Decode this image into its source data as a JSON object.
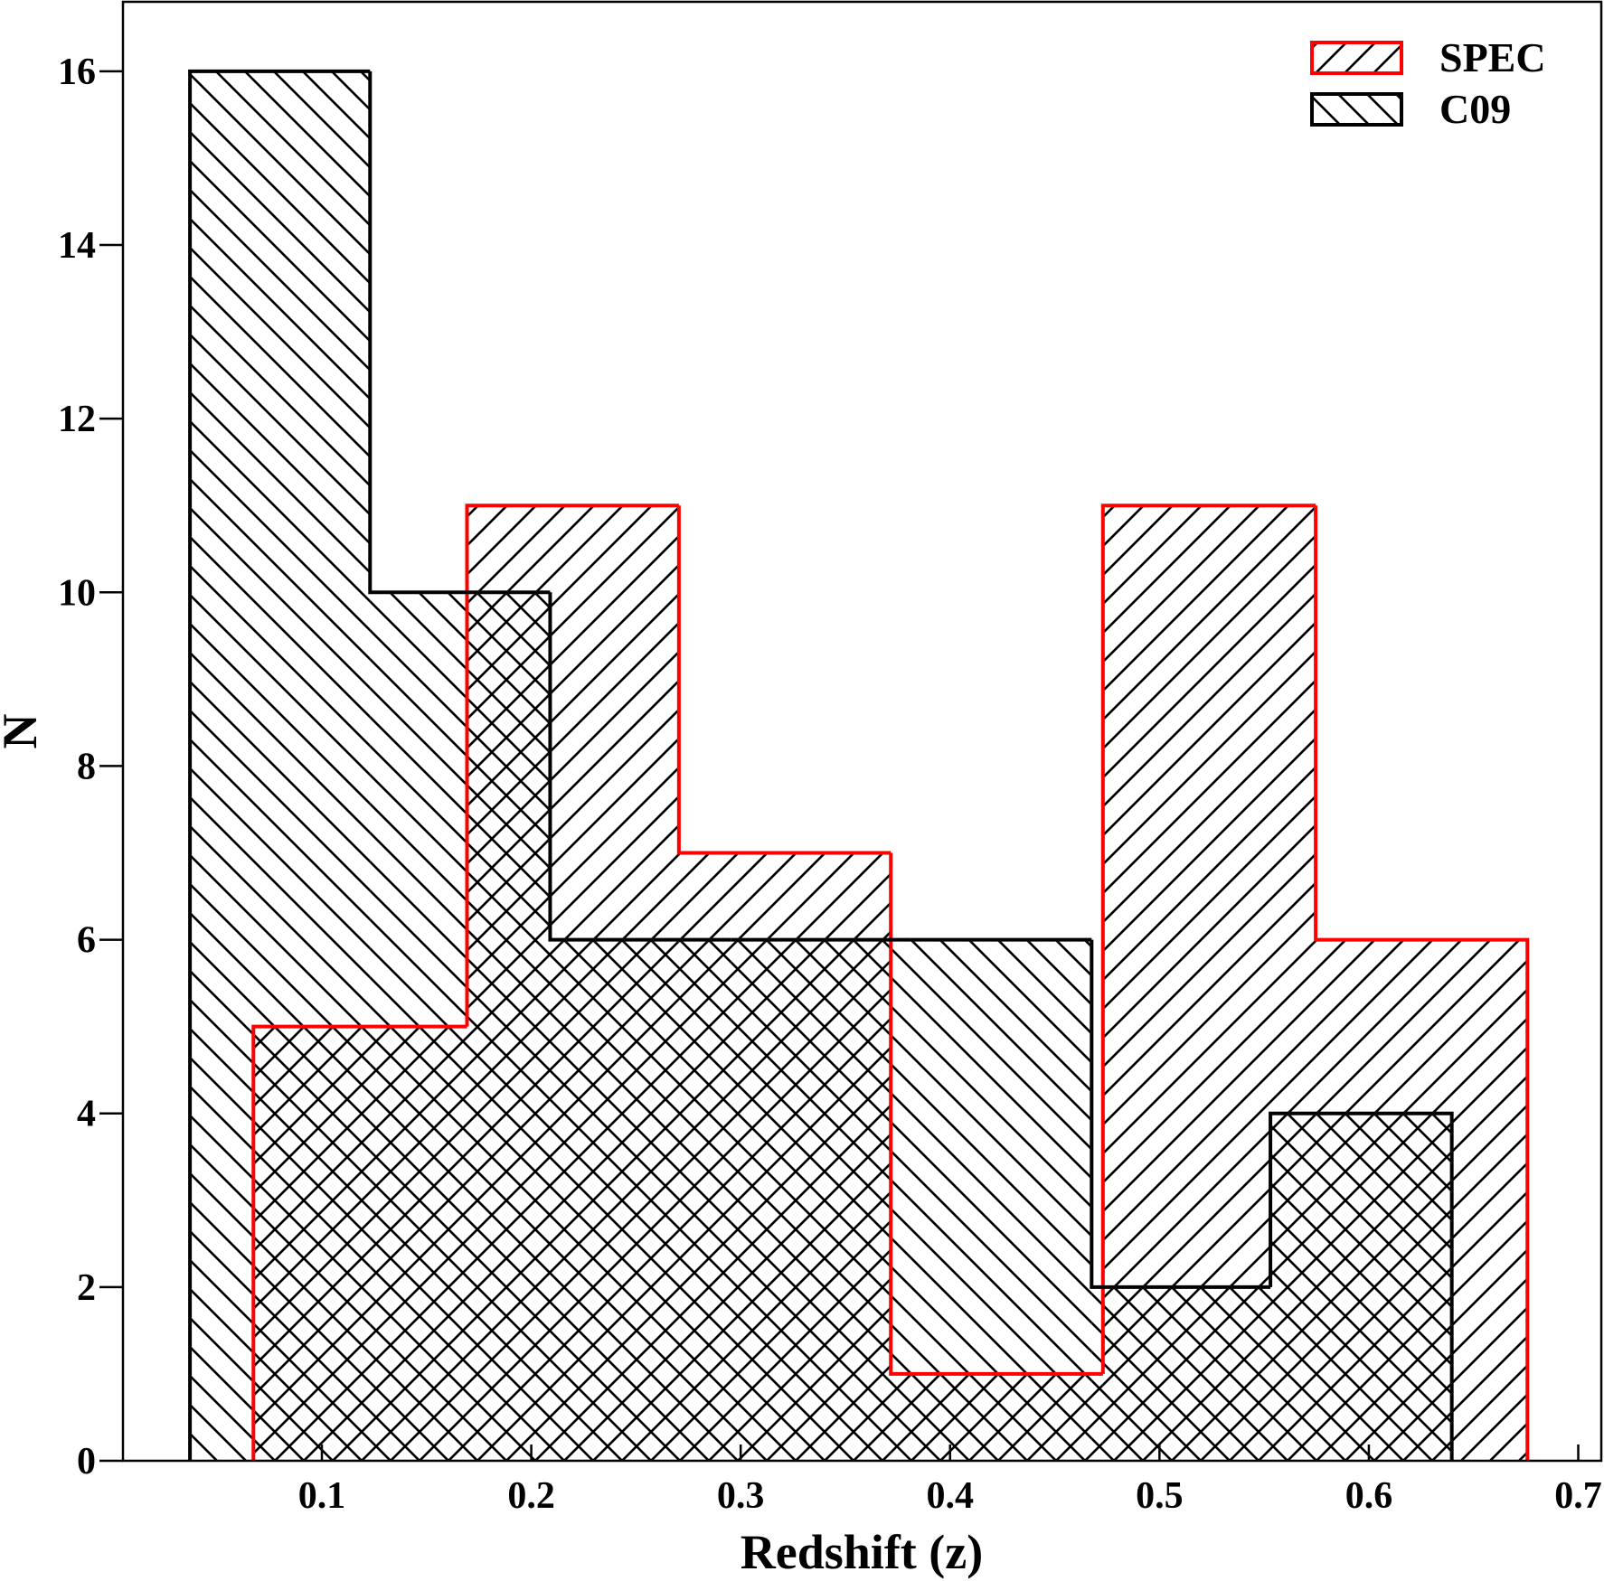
{
  "chart_data": {
    "type": "histogram",
    "x_label": "Redshift (z)",
    "y_label": "N",
    "xlim": [
      0.005,
      0.711
    ],
    "ylim": [
      0,
      16.8
    ],
    "xticks": [
      0.1,
      0.2,
      0.3,
      0.4,
      0.5,
      0.6,
      0.7
    ],
    "yticks": [
      0,
      2,
      4,
      6,
      8,
      10,
      12,
      14,
      16
    ],
    "legend": "upper right",
    "series": [
      {
        "name": "SPEC",
        "color": "#ff0000",
        "hatch": "/",
        "bins": [
          0.0673,
          0.1693,
          0.2705,
          0.3717,
          0.473,
          0.5746,
          0.6757
        ],
        "values": [
          5,
          11,
          7,
          1,
          11,
          6
        ]
      },
      {
        "name": "C09",
        "color": "#000000",
        "hatch": "\\",
        "bins": [
          0.037,
          0.123,
          0.209,
          0.2955,
          0.3815,
          0.4676,
          0.553,
          0.6396
        ],
        "values": [
          16,
          10,
          6,
          6,
          6,
          2,
          4
        ]
      }
    ]
  }
}
